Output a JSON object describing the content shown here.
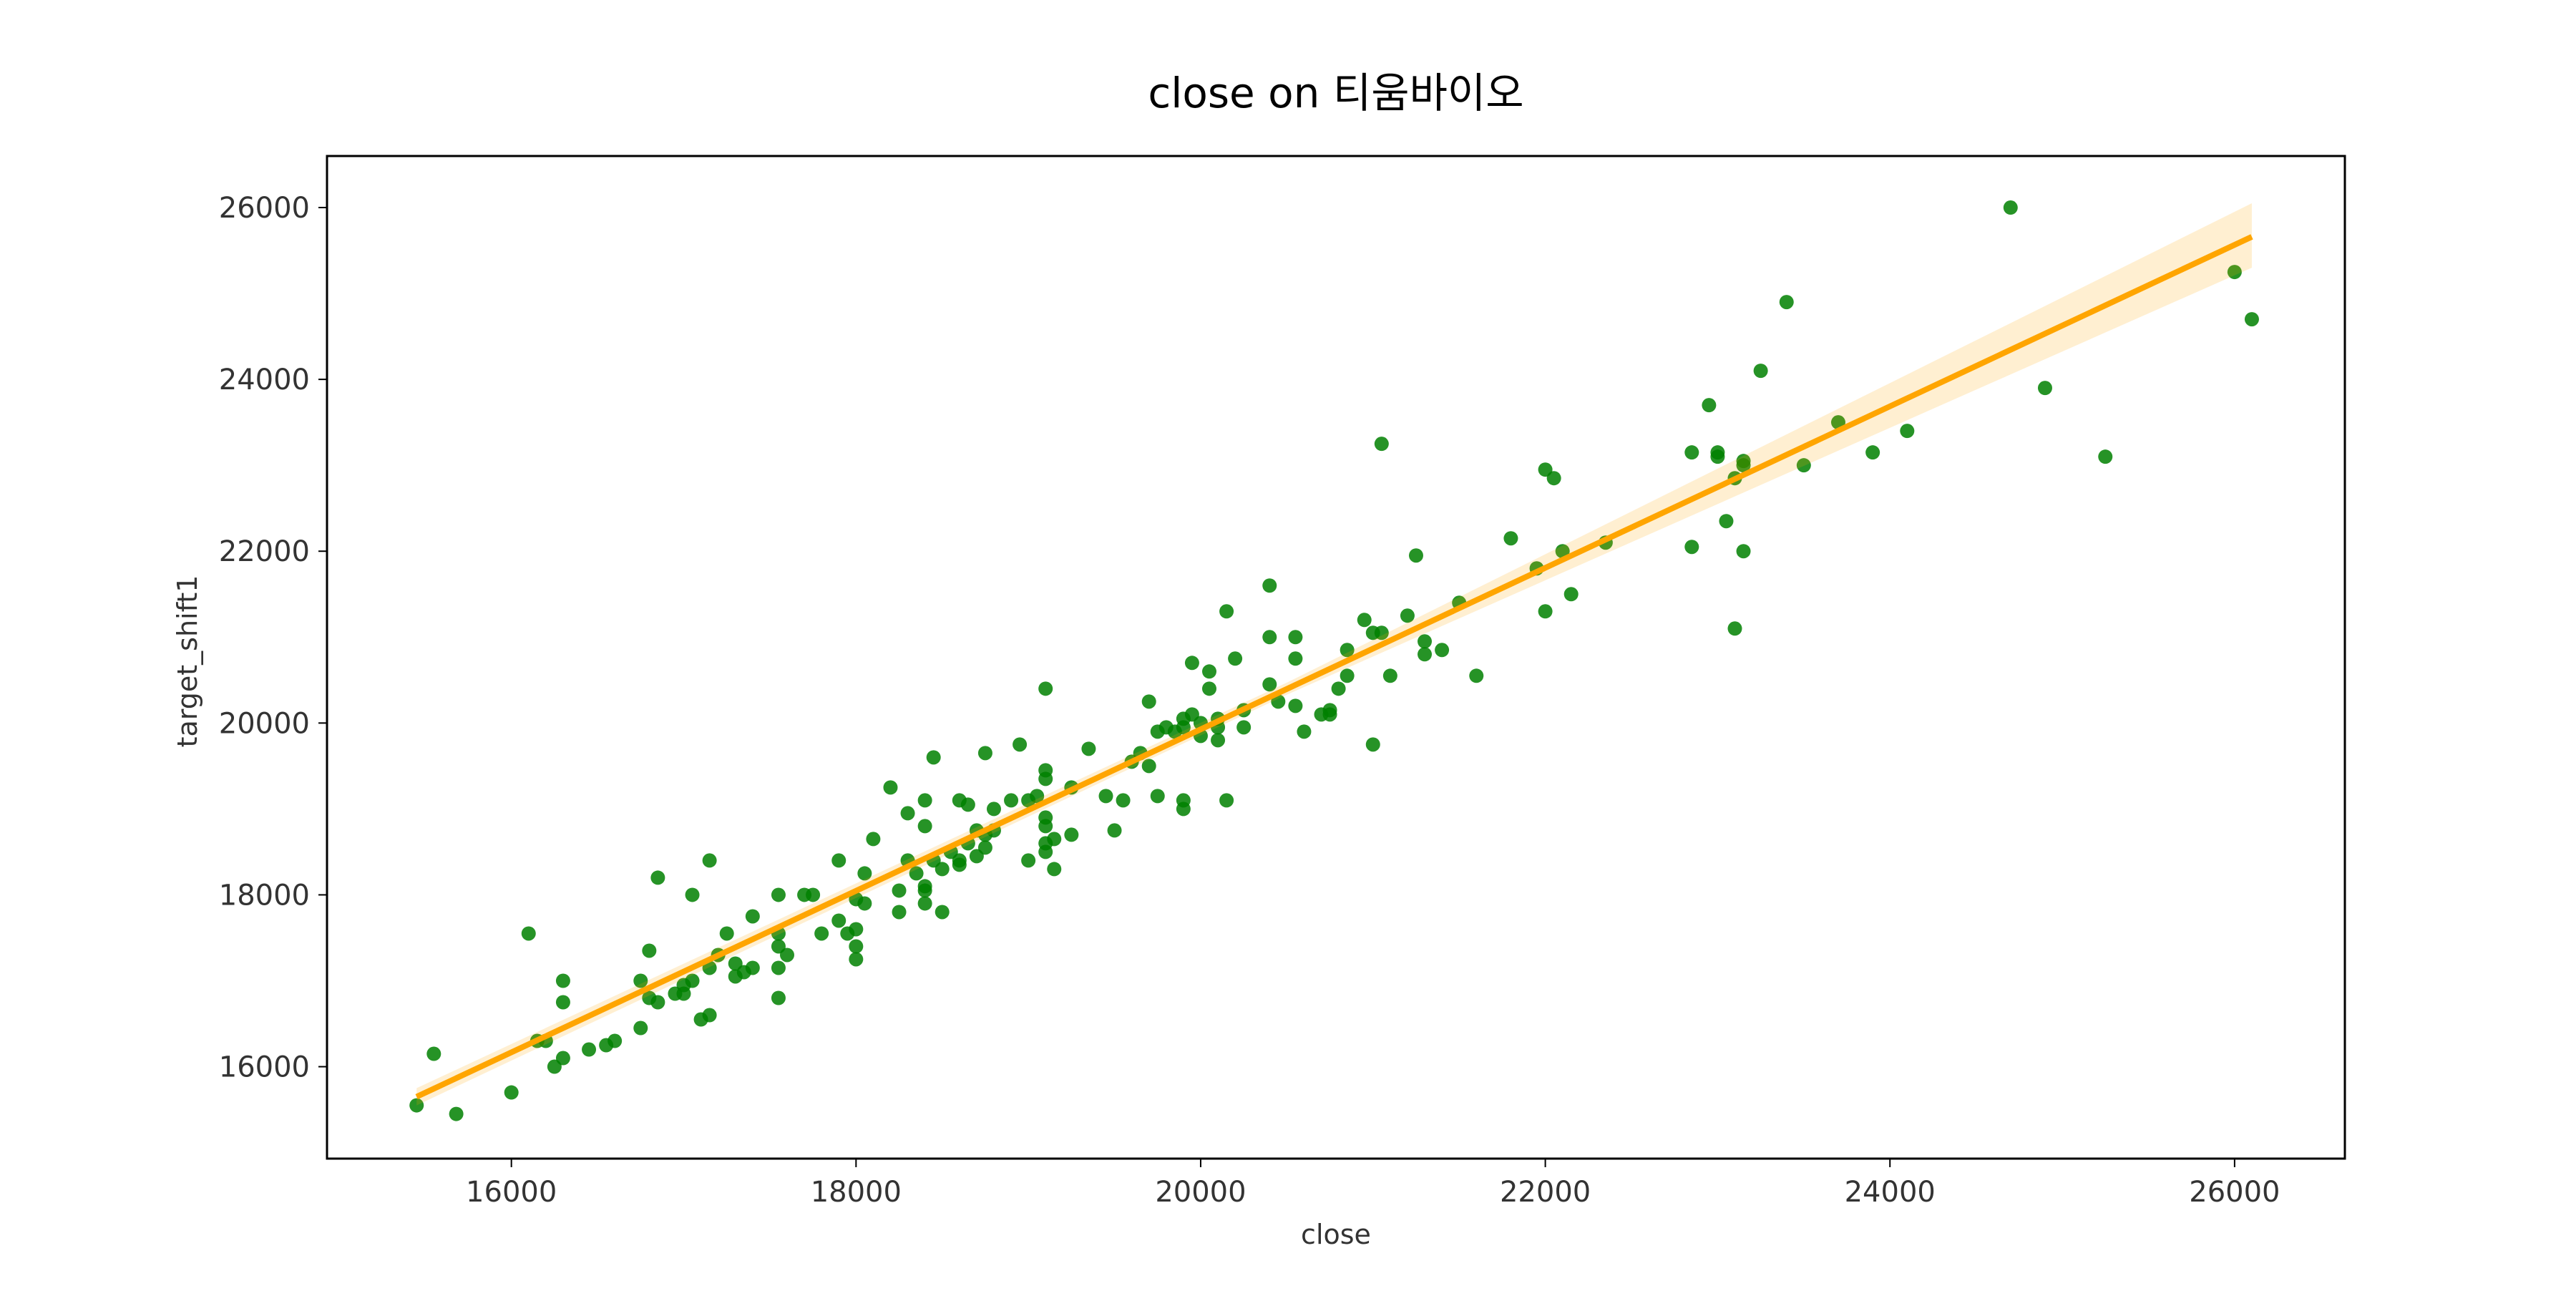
{
  "chart_data": {
    "type": "scatter",
    "title": "close on 티움바이오",
    "xlabel": "close",
    "ylabel": "target_shift1",
    "xlim": [
      14930,
      26640
    ],
    "ylim": [
      14930,
      26600
    ],
    "xticks": [
      16000,
      18000,
      20000,
      22000,
      24000,
      26000
    ],
    "yticks": [
      16000,
      18000,
      20000,
      22000,
      24000,
      26000
    ],
    "grid": false,
    "series": [
      {
        "color": "green",
        "x": [
          15450,
          15550,
          15680,
          16000,
          16100,
          16150,
          16200,
          16250,
          16300,
          16300,
          16300,
          16450,
          16550,
          16600,
          16750,
          16750,
          16800,
          16800,
          16850,
          16850,
          16950,
          17000,
          17000,
          17050,
          17050,
          17100,
          17150,
          17150,
          17150,
          17200,
          17250,
          17300,
          17300,
          17350,
          17400,
          17400,
          17550,
          17550,
          17550,
          17550,
          17550,
          17600,
          17700,
          17750,
          17800,
          17900,
          17900,
          17950,
          18000,
          18000,
          18000,
          18000,
          18050,
          18050,
          18100,
          18200,
          18250,
          18250,
          18300,
          18300,
          18350,
          18400,
          18400,
          18400,
          18400,
          18400,
          18450,
          18450,
          18500,
          18500,
          18550,
          18600,
          18600,
          18600,
          18650,
          18650,
          18700,
          18700,
          18750,
          18750,
          18750,
          18800,
          18800,
          18900,
          18950,
          19000,
          19000,
          19050,
          19100,
          19100,
          19100,
          19100,
          19100,
          19100,
          19100,
          19150,
          19150,
          19250,
          19250,
          19350,
          19450,
          19500,
          19550,
          19600,
          19650,
          19700,
          19700,
          19750,
          19750,
          19800,
          19850,
          19900,
          19900,
          19900,
          19900,
          19950,
          19950,
          20000,
          20000,
          20050,
          20050,
          20100,
          20100,
          20100,
          20150,
          20150,
          20200,
          20250,
          20250,
          20400,
          20400,
          20400,
          20450,
          20550,
          20550,
          20550,
          20600,
          20700,
          20750,
          20750,
          20800,
          20850,
          20850,
          20950,
          21000,
          21000,
          21050,
          21050,
          21100,
          21200,
          21250,
          21300,
          21300,
          21400,
          21500,
          21600,
          21800,
          21950,
          22000,
          22000,
          22050,
          22100,
          22150,
          22350,
          22850,
          22850,
          22950,
          23000,
          23000,
          23050,
          23100,
          23100,
          23150,
          23150,
          23150,
          23250,
          23400,
          23500,
          23700,
          23900,
          24100,
          24700,
          24900,
          25250,
          26000,
          26100
        ],
        "values": [
          15550,
          16150,
          15450,
          15700,
          17550,
          16300,
          16300,
          16000,
          16100,
          16750,
          17000,
          16200,
          16250,
          16300,
          16450,
          17000,
          16800,
          17350,
          18200,
          16750,
          16850,
          16950,
          16850,
          17000,
          18000,
          16550,
          16600,
          17150,
          18400,
          17300,
          17550,
          17050,
          17200,
          17100,
          17150,
          17750,
          16800,
          17150,
          17400,
          17550,
          18000,
          17300,
          18000,
          18000,
          17550,
          17700,
          18400,
          17550,
          17250,
          17400,
          17600,
          17950,
          17900,
          18250,
          18650,
          19250,
          17800,
          18050,
          18400,
          18950,
          18250,
          17900,
          18050,
          18100,
          18800,
          19100,
          19600,
          18400,
          17800,
          18300,
          18500,
          18350,
          18400,
          19100,
          18600,
          19050,
          18450,
          18750,
          18550,
          18700,
          19650,
          18750,
          19000,
          19100,
          19750,
          18400,
          19100,
          19150,
          18500,
          18600,
          18800,
          18900,
          19350,
          19450,
          20400,
          18300,
          18650,
          18700,
          19250,
          19700,
          19150,
          18750,
          19100,
          19550,
          19650,
          19500,
          20250,
          19150,
          19900,
          19950,
          19900,
          19000,
          19100,
          19950,
          20050,
          20100,
          20700,
          19850,
          20000,
          20400,
          20600,
          19800,
          19950,
          20050,
          19100,
          21300,
          20750,
          19950,
          20150,
          20450,
          21000,
          21600,
          20250,
          20200,
          20750,
          21000,
          19900,
          20100,
          20100,
          20150,
          20400,
          20550,
          20850,
          21200,
          19750,
          21050,
          21050,
          23250,
          20550,
          21250,
          21950,
          20800,
          20950,
          20850,
          21400,
          20550,
          22150,
          21800,
          21300,
          22950,
          22850,
          22000,
          21500,
          22100,
          22050,
          23150,
          23700,
          23100,
          23150,
          22350,
          21100,
          22850,
          22000,
          23000,
          23050,
          24100,
          24900,
          23000,
          23500,
          23150,
          23400,
          26000,
          23900,
          23100,
          25250,
          24700
        ]
      }
    ],
    "band": {
      "color": "orange",
      "x": [
        15450,
        20500,
        26100
      ],
      "lower": [
        15550,
        20330,
        25300
      ],
      "upper": [
        15750,
        20470,
        26050
      ]
    },
    "fit": {
      "color": "orange",
      "x": [
        15450,
        26100
      ],
      "values": [
        15650,
        25660
      ]
    }
  }
}
